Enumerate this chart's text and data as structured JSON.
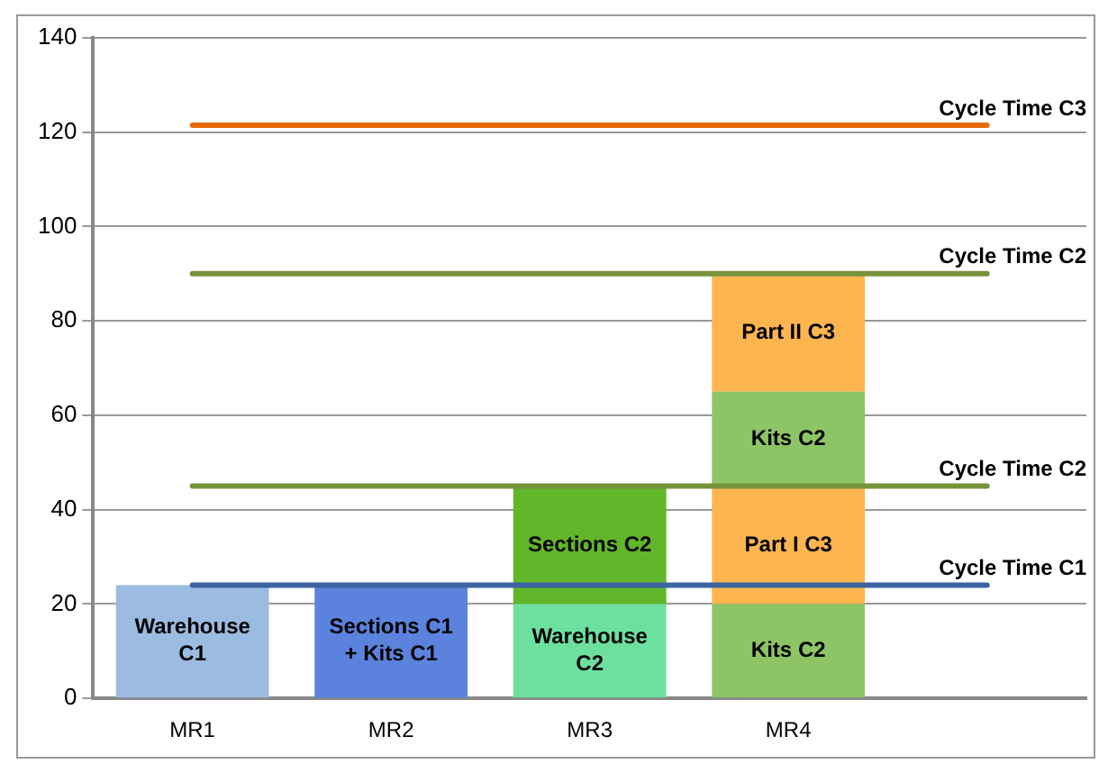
{
  "chart_data": {
    "type": "bar",
    "stacked": true,
    "categories": [
      "MR1",
      "MR2",
      "MR3",
      "MR4",
      null
    ],
    "series": [
      {
        "values": [
          24,
          24,
          20,
          20,
          null
        ],
        "colors": [
          "#9bbbe0",
          "#5b83de",
          "#6ddf9f",
          "#8cc466",
          null
        ],
        "value_labels": [
          "Warehouse C1",
          "Sections C1 + Kits C1",
          "Warehouse C2",
          "Kits C2",
          null
        ]
      },
      {
        "values": [
          null,
          null,
          25,
          25,
          null
        ],
        "colors": [
          null,
          null,
          "#62b62a",
          "#fdb54f",
          null
        ],
        "value_labels": [
          null,
          null,
          "Sections C2",
          "Part I C3",
          null
        ]
      },
      {
        "values": [
          null,
          null,
          null,
          20,
          null
        ],
        "colors": [
          null,
          null,
          null,
          "#8cc466",
          null
        ],
        "value_labels": [
          null,
          null,
          null,
          "Kits C2",
          null
        ]
      },
      {
        "values": [
          null,
          null,
          null,
          25,
          null
        ],
        "colors": [
          null,
          null,
          null,
          "#fdb54f",
          null
        ],
        "value_labels": [
          null,
          null,
          null,
          "Part II C3",
          null
        ]
      }
    ],
    "ylim": [
      0,
      140
    ],
    "yticks": [
      0,
      20,
      40,
      60,
      80,
      100,
      120,
      140
    ],
    "grid": "y",
    "legend": false,
    "ref_lines": [
      {
        "axis": "y",
        "value": 121.5,
        "label": "Cycle Time C3",
        "color": "#e46c0a"
      },
      {
        "axis": "y",
        "value": 90,
        "label": "Cycle Time C2",
        "color": "#77933c"
      },
      {
        "axis": "y",
        "value": 45,
        "label": "Cycle Time C2",
        "color": "#77933c"
      },
      {
        "axis": "y",
        "value": 24,
        "label": "Cycle Time C1",
        "color": "#3b64a0"
      }
    ]
  }
}
